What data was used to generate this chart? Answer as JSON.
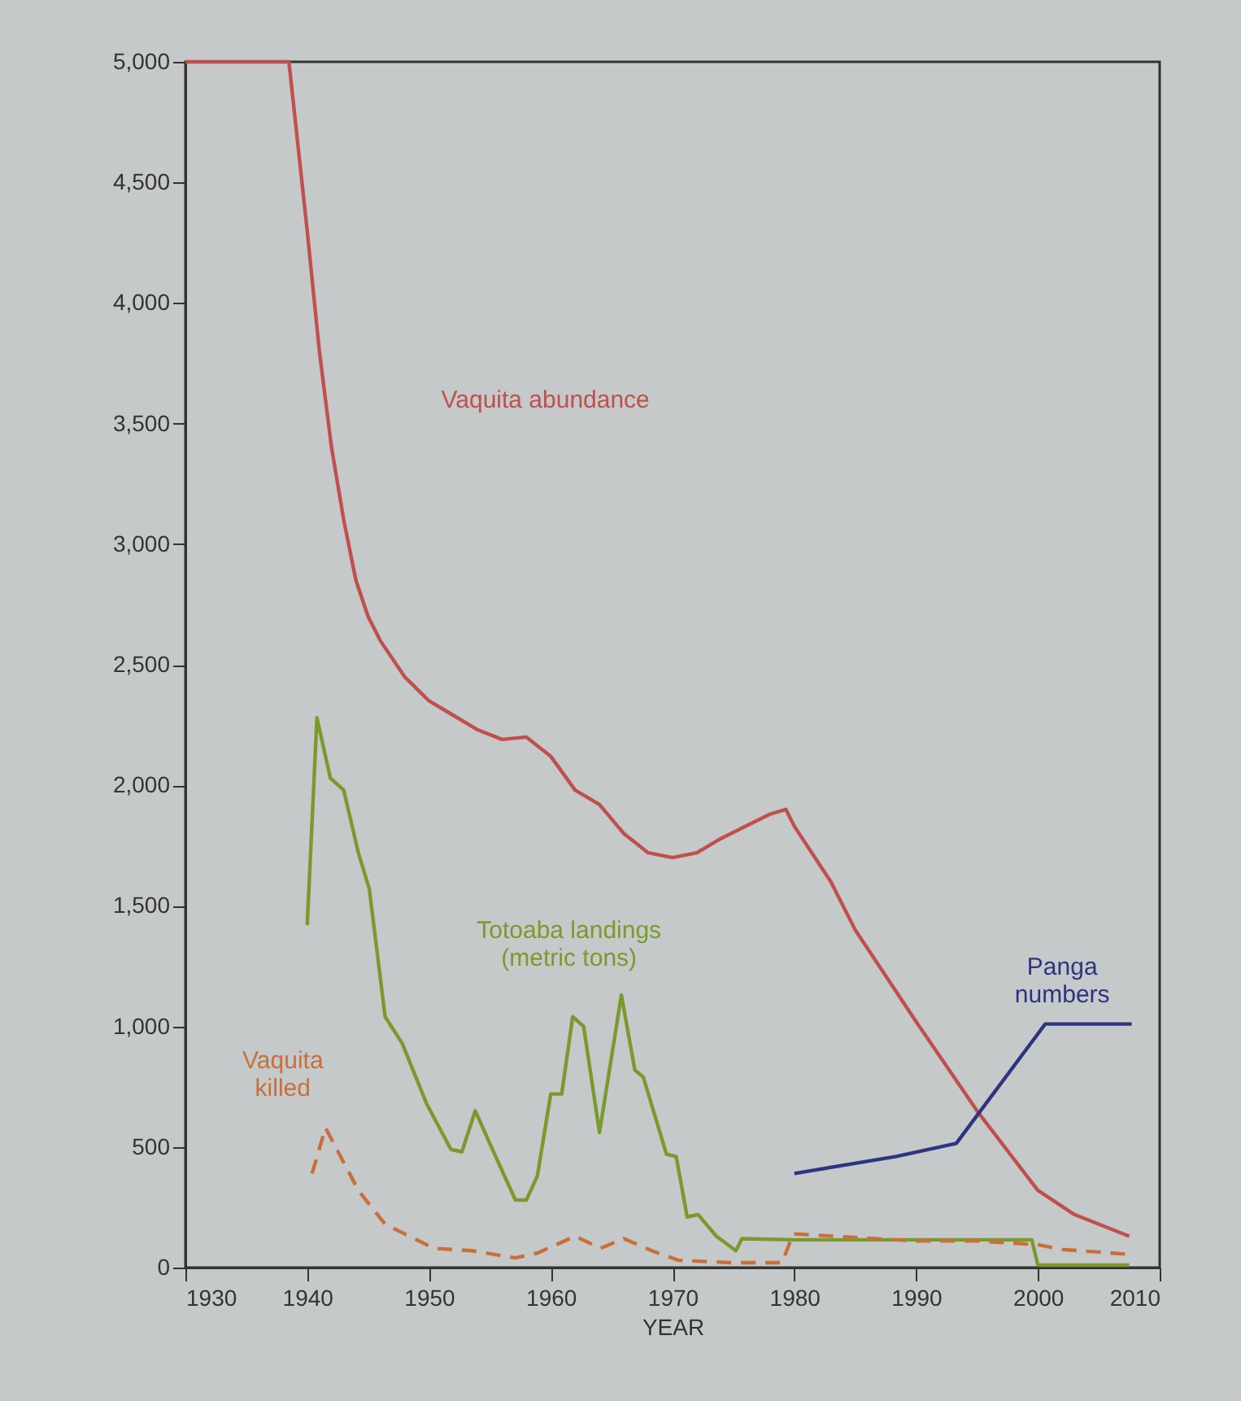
{
  "chart_data": {
    "type": "line",
    "xlabel": "YEAR",
    "xlim": [
      1930,
      2010
    ],
    "xticks": [
      1930,
      1940,
      1950,
      1960,
      1970,
      1980,
      1990,
      2000,
      2010
    ],
    "ylim": [
      0,
      5000
    ],
    "yticks": [
      0,
      500,
      {
        "value": 1000,
        "label": "1,000"
      },
      {
        "value": 1500,
        "label": "1,500"
      },
      {
        "value": 2000,
        "label": "2,000"
      },
      {
        "value": 2500,
        "label": "2,500"
      },
      {
        "value": 3000,
        "label": "3,000"
      },
      {
        "value": 3500,
        "label": "3,500"
      },
      {
        "value": 4000,
        "label": "4,000"
      },
      {
        "value": 4500,
        "label": "4,500"
      },
      {
        "value": 5000,
        "label": "5,000"
      }
    ],
    "grid": false,
    "marker": "none",
    "series": [
      {
        "name": "Vaquita abundance",
        "color": "#c0504d",
        "line_style": "solid",
        "x": [
          1930,
          1938.5,
          1940,
          1941,
          1942,
          1943,
          1944,
          1945,
          1946,
          1948,
          1950,
          1952,
          1954,
          1956,
          1958,
          1960,
          1962,
          1964,
          1966,
          1968,
          1970,
          1972,
          1974,
          1976,
          1978,
          1979.3,
          1980,
          1983,
          1985,
          1990,
          1995,
          2000,
          2003,
          2007.5
        ],
        "values": [
          5000,
          5000,
          4300,
          3800,
          3400,
          3100,
          2850,
          2700,
          2600,
          2450,
          2350,
          2290,
          2230,
          2190,
          2200,
          2120,
          1980,
          1920,
          1800,
          1720,
          1700,
          1720,
          1780,
          1830,
          1880,
          1900,
          1830,
          1600,
          1400,
          1020,
          650,
          320,
          220,
          130
        ]
      },
      {
        "name": "Totoaba landings\n(metric tons)",
        "color": "#7a9a2e",
        "line_style": "solid",
        "x": [
          1940,
          1940.8,
          1941.9,
          1943,
          1944.2,
          1945.1,
          1946.4,
          1947.8,
          1949.8,
          1951.8,
          1952.7,
          1953.8,
          1955.3,
          1957.1,
          1958,
          1958.9,
          1960,
          1960.9,
          1961.8,
          1962.7,
          1964,
          1965.8,
          1966.9,
          1967.6,
          1969.5,
          1970.3,
          1971.2,
          1972.1,
          1973.6,
          1975.2,
          1975.7,
          1980,
          1990,
          1999.5,
          2000,
          2007.5
        ],
        "values": [
          1420,
          2280,
          2030,
          1980,
          1720,
          1570,
          1040,
          930,
          680,
          490,
          480,
          650,
          480,
          280,
          280,
          380,
          720,
          720,
          1040,
          1000,
          560,
          1130,
          820,
          790,
          470,
          460,
          210,
          220,
          130,
          70,
          120,
          115,
          115,
          115,
          10,
          10
        ]
      },
      {
        "name": "Vaquita\nkilled",
        "color": "#c8703c",
        "line_style": "dashed",
        "x": [
          1940.4,
          1941.5,
          1944.2,
          1946.4,
          1950.4,
          1953.5,
          1957.1,
          1958.9,
          1962,
          1964.1,
          1966,
          1968.3,
          1970.5,
          1975,
          1979,
          1979.9,
          1985,
          1990,
          1995,
          2000,
          2002,
          2007.5
        ],
        "values": [
          390,
          580,
          320,
          180,
          80,
          70,
          40,
          60,
          130,
          80,
          120,
          70,
          30,
          20,
          20,
          140,
          125,
          110,
          110,
          95,
          75,
          55
        ]
      },
      {
        "name": "Panga\nnumbers",
        "color": "#2e3580",
        "line_style": "solid",
        "x": [
          1980,
          1988.3,
          1993.3,
          2000.6,
          2007.7
        ],
        "values": [
          390,
          460,
          515,
          1010,
          1010
        ]
      }
    ]
  }
}
